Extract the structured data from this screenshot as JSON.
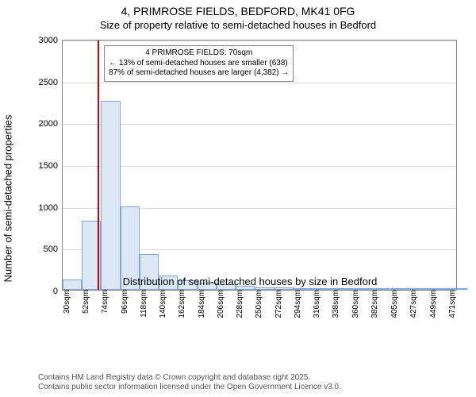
{
  "titles": {
    "line1": "4, PRIMROSE FIELDS, BEDFORD, MK41 0FG",
    "line2": "Size of property relative to semi-detached houses in Bedford"
  },
  "chart": {
    "type": "histogram",
    "xlim": [
      30,
      482
    ],
    "ylim": [
      0,
      3000
    ],
    "yticks": [
      0,
      500,
      1000,
      1500,
      2000,
      2500,
      3000
    ],
    "xticks": [
      30,
      52,
      74,
      96,
      118,
      140,
      162,
      184,
      206,
      228,
      250,
      272,
      294,
      316,
      338,
      360,
      382,
      405,
      427,
      449,
      471
    ],
    "xtick_unit": "sqm",
    "ylabel": "Number of semi-detached properties",
    "xlabel": "Distribution of semi-detached houses by size in Bedford",
    "bin_width": 22,
    "bar_color": "#dbe7f6",
    "bar_border": "#82a5cf",
    "grid_color": "#d8d8d8",
    "axis_color": "#8a8a8a",
    "vline_color": "#cc0000",
    "background": "#ffffff",
    "bins": [
      {
        "start": 30,
        "count": 120
      },
      {
        "start": 52,
        "count": 830
      },
      {
        "start": 74,
        "count": 2260
      },
      {
        "start": 96,
        "count": 1000
      },
      {
        "start": 118,
        "count": 430
      },
      {
        "start": 140,
        "count": 170
      },
      {
        "start": 162,
        "count": 110
      },
      {
        "start": 184,
        "count": 85
      },
      {
        "start": 206,
        "count": 65
      },
      {
        "start": 228,
        "count": 45
      },
      {
        "start": 250,
        "count": 25
      },
      {
        "start": 272,
        "count": 28
      },
      {
        "start": 294,
        "count": 10
      },
      {
        "start": 316,
        "count": 5
      },
      {
        "start": 338,
        "count": 4
      },
      {
        "start": 360,
        "count": 4
      },
      {
        "start": 382,
        "count": 3
      },
      {
        "start": 405,
        "count": 2
      },
      {
        "start": 427,
        "count": 1
      },
      {
        "start": 449,
        "count": 1
      },
      {
        "start": 471,
        "count": 1
      }
    ],
    "marker_x": 70,
    "annotation": {
      "line1": "4 PRIMROSE FIELDS: 70sqm",
      "line2": "← 13% of semi-detached houses are smaller (638)",
      "line3": "87% of semi-detached houses are larger (4,382) →"
    },
    "anno_font_size": 10,
    "title_fontsize": 14,
    "subtitle_fontsize": 13,
    "label_fontsize": 13,
    "tick_fontsize": 10
  },
  "footer": {
    "line1": "Contains HM Land Registry data © Crown copyright and database right 2025.",
    "line2": "Contains public sector information licensed under the Open Government Licence v3.0."
  }
}
